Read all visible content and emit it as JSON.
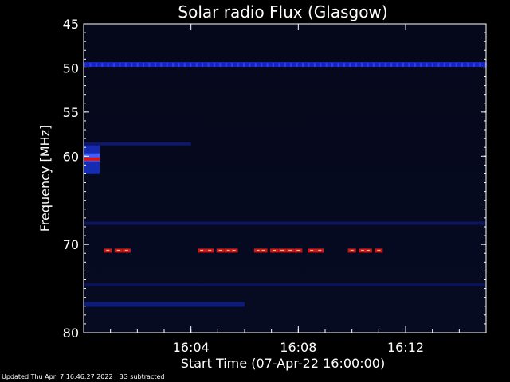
{
  "chart_data": {
    "type": "heatmap",
    "title": "Solar radio Flux (Glasgow)",
    "xlabel": "Start Time (07-Apr-22 16:00:00)",
    "ylabel": "Frequency [MHz]",
    "x_unit": "minutes after 16:00:00",
    "xlim": [
      0,
      15
    ],
    "ylim": [
      45,
      80
    ],
    "y_inverted": true,
    "x_ticks": [
      {
        "value": 4,
        "label": "16:04"
      },
      {
        "value": 8,
        "label": "16:08"
      },
      {
        "value": 12,
        "label": "16:12"
      }
    ],
    "y_ticks": [
      {
        "value": 45,
        "label": "45"
      },
      {
        "value": 50,
        "label": "50"
      },
      {
        "value": 55,
        "label": "55"
      },
      {
        "value": 60,
        "label": "60"
      },
      {
        "value": 70,
        "label": "70"
      },
      {
        "value": 80,
        "label": "80"
      }
    ],
    "features": [
      {
        "kind": "band",
        "freq": 49.6,
        "t0": 0,
        "t1": 15,
        "intensity": "medium",
        "color": "#1a2bd6"
      },
      {
        "kind": "band",
        "freq": 58.6,
        "t0": 0,
        "t1": 4,
        "intensity": "low",
        "color": "#101a7a"
      },
      {
        "kind": "band",
        "freq": 67.6,
        "t0": 0,
        "t1": 15,
        "intensity": "low",
        "color": "#0e1868"
      },
      {
        "kind": "band",
        "freq": 74.6,
        "t0": 0,
        "t1": 15,
        "intensity": "low",
        "color": "#0c1460"
      },
      {
        "kind": "band",
        "freq": 76.8,
        "t0": 0,
        "t1": 6,
        "intensity": "medium",
        "color": "#101e8a"
      },
      {
        "kind": "burst",
        "freq": 60.4,
        "t0": 0,
        "t1": 0.6,
        "intensity": "high"
      },
      {
        "kind": "pulse",
        "freq": 70.7,
        "t": [
          0.9,
          1.3,
          1.6,
          4.4,
          4.7,
          5.1,
          5.4,
          5.6,
          6.5,
          6.7,
          7.1,
          7.4,
          7.7,
          8.0,
          8.5,
          8.8,
          10.0,
          10.4,
          10.6,
          11.0
        ],
        "intensity": "high"
      }
    ]
  },
  "footer": {
    "updated": "Updated Thu Apr  7 16:46:27 2022",
    "note": "BG subtracted"
  }
}
